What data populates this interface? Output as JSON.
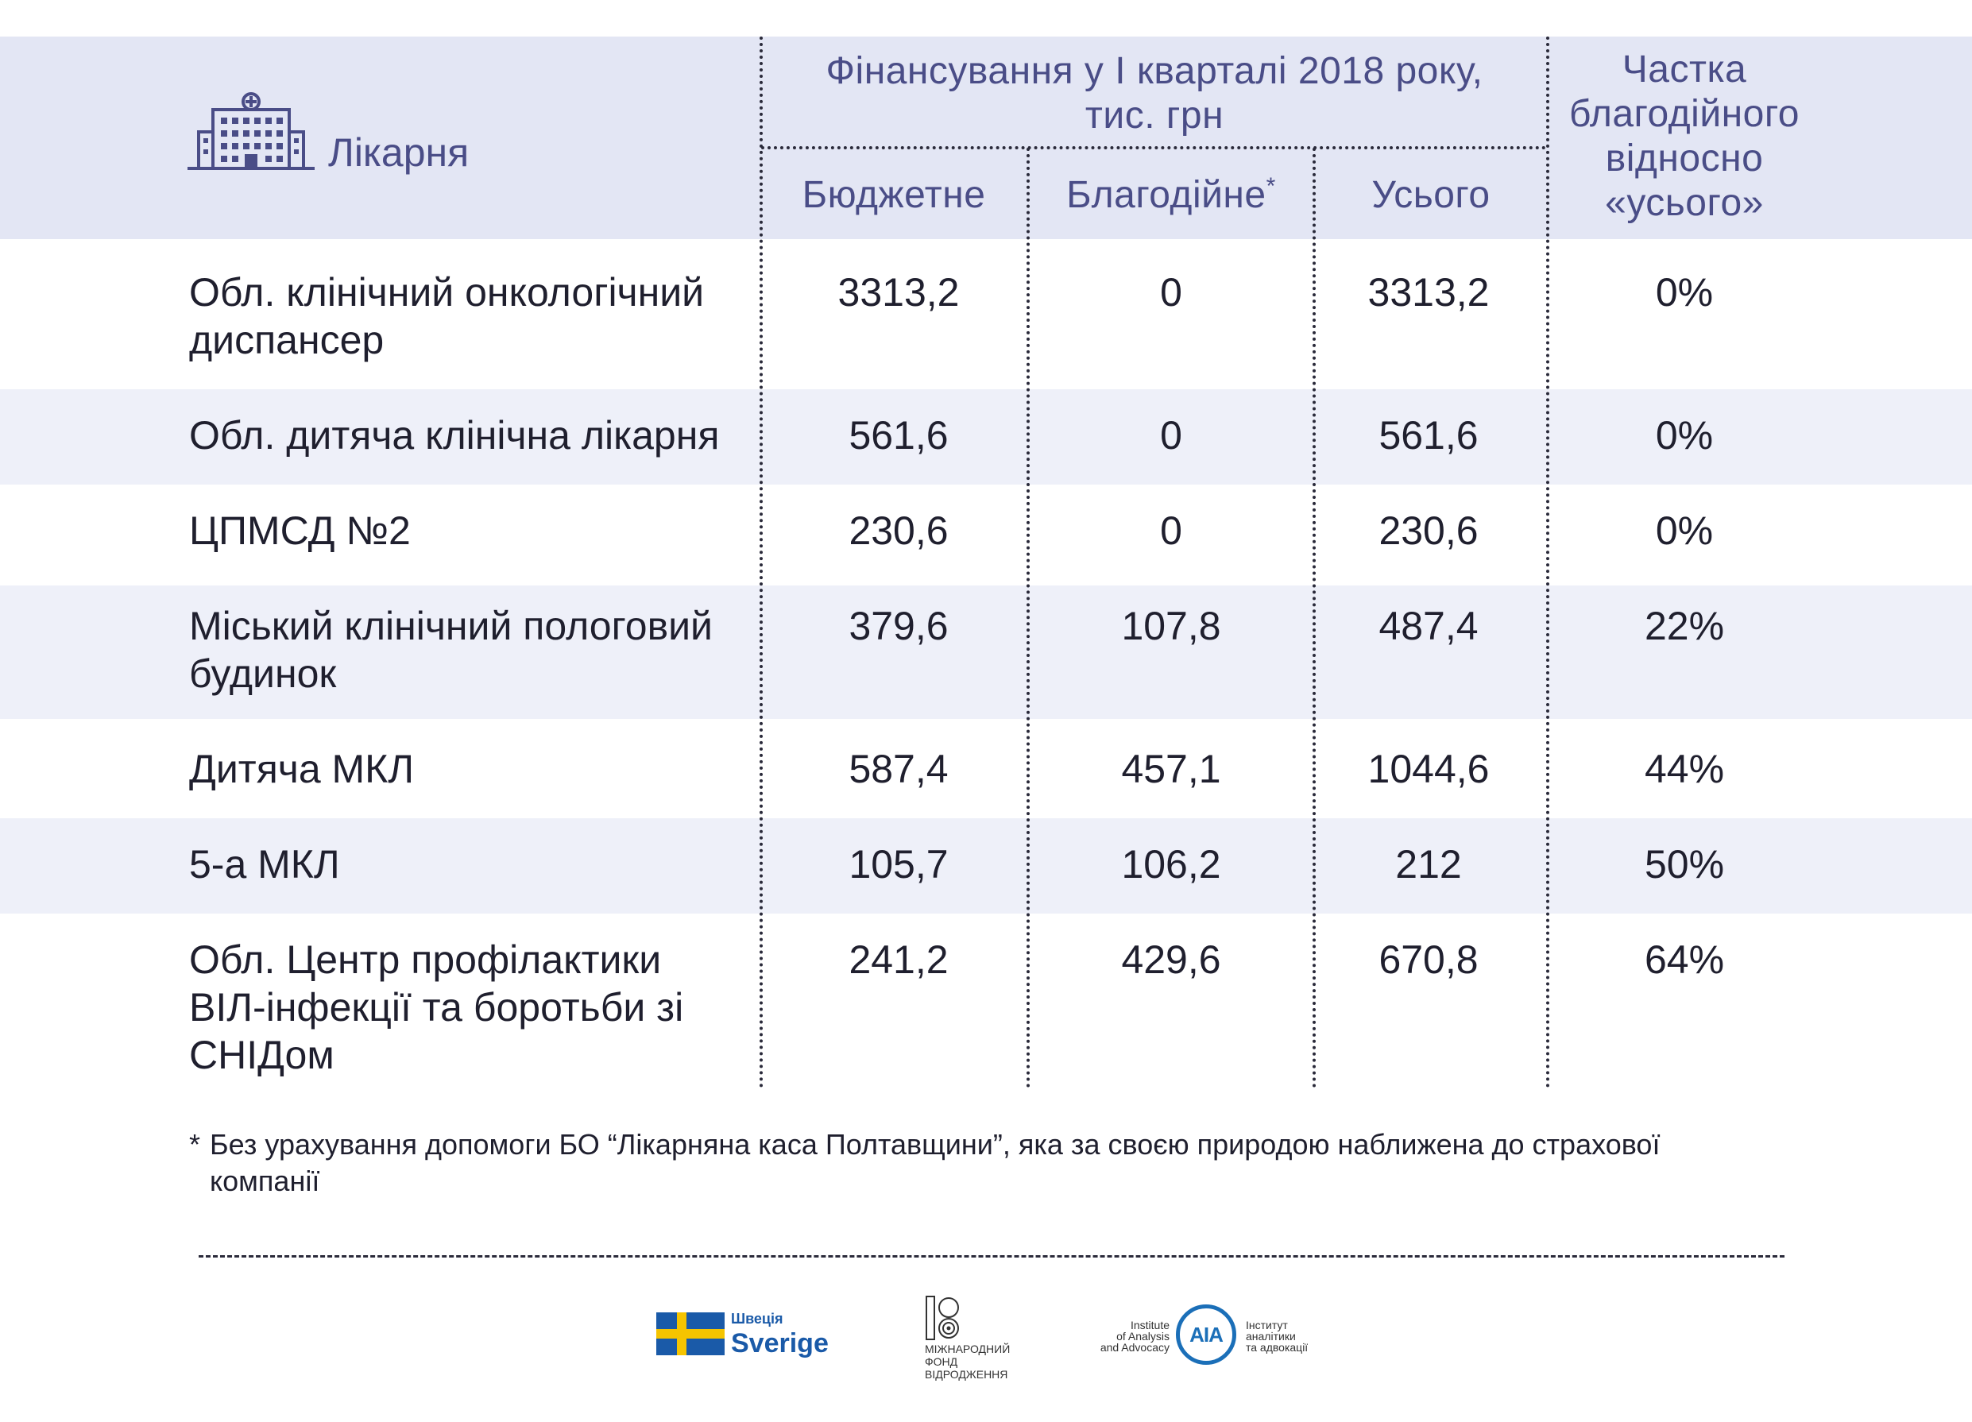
{
  "header": {
    "hospital": "Лікарня",
    "funding_group_line1": "Фінансування у І кварталі 2018 року,",
    "funding_group_line2": "тис. грн",
    "col_budget": "Бюджетне",
    "col_charity": "Благодійне",
    "col_charity_mark": "*",
    "col_total": "Усього",
    "share_line1": "Частка",
    "share_line2": "благодійного",
    "share_line3": "відносно",
    "share_line4": "«усього»"
  },
  "rows": [
    {
      "name_line1": "Обл. клінічний онкологічний",
      "name_line2": "диспансер",
      "name_line3": "",
      "budget": "3313,2",
      "charity": "0",
      "total": "3313,2",
      "share": "0%"
    },
    {
      "name_line1": "Обл. дитяча клінічна лікарня",
      "name_line2": "",
      "name_line3": "",
      "budget": "561,6",
      "charity": "0",
      "total": "561,6",
      "share": "0%"
    },
    {
      "name_line1": "ЦПМСД №2",
      "name_line2": "",
      "name_line3": "",
      "budget": "230,6",
      "charity": "0",
      "total": "230,6",
      "share": "0%"
    },
    {
      "name_line1": "Міський клінічний пологовий",
      "name_line2": "будинок",
      "name_line3": "",
      "budget": "379,6",
      "charity": "107,8",
      "total": "487,4",
      "share": "22%"
    },
    {
      "name_line1": "Дитяча МКЛ",
      "name_line2": "",
      "name_line3": "",
      "budget": "587,4",
      "charity": "457,1",
      "total": "1044,6",
      "share": "44%"
    },
    {
      "name_line1": "5-а МКЛ",
      "name_line2": "",
      "name_line3": "",
      "budget": "105,7",
      "charity": "106,2",
      "total": "212",
      "share": "50%"
    },
    {
      "name_line1": "Обл. Центр профілактики",
      "name_line2": "ВІЛ-інфекції та боротьби зі",
      "name_line3": "СНІДом",
      "budget": "241,2",
      "charity": "429,6",
      "total": "670,8",
      "share": "64%"
    }
  ],
  "footnote": {
    "star": "*",
    "line1": "Без урахування допомоги БО “Лікарняна каса Полтавщини”, яка за своєю природою наближена до страхової",
    "line2": "компанії"
  },
  "logos": {
    "sweden_small": "Швеція",
    "sweden_big": "Sverige",
    "irf_line1": "МІЖНАРОДНИЙ",
    "irf_line2": "ФОНД",
    "irf_line3": "ВІДРОДЖЕННЯ",
    "iaa_en_line1": "Institute",
    "iaa_en_line2": "of Analysis",
    "iaa_en_line3": "and Advocacy",
    "iaa_mark": "AIA",
    "iaa_ua_line1": "Інститут",
    "iaa_ua_line2": "аналітики",
    "iaa_ua_line3": "та адвокації"
  },
  "colors": {
    "header_band": "#e3e6f4",
    "row_band": "#eef0f9",
    "header_text": "#4a4d87",
    "sweden_blue": "#1a5aa8",
    "sweden_yellow": "#f5c400",
    "iaa_blue": "#1b6fb8"
  }
}
